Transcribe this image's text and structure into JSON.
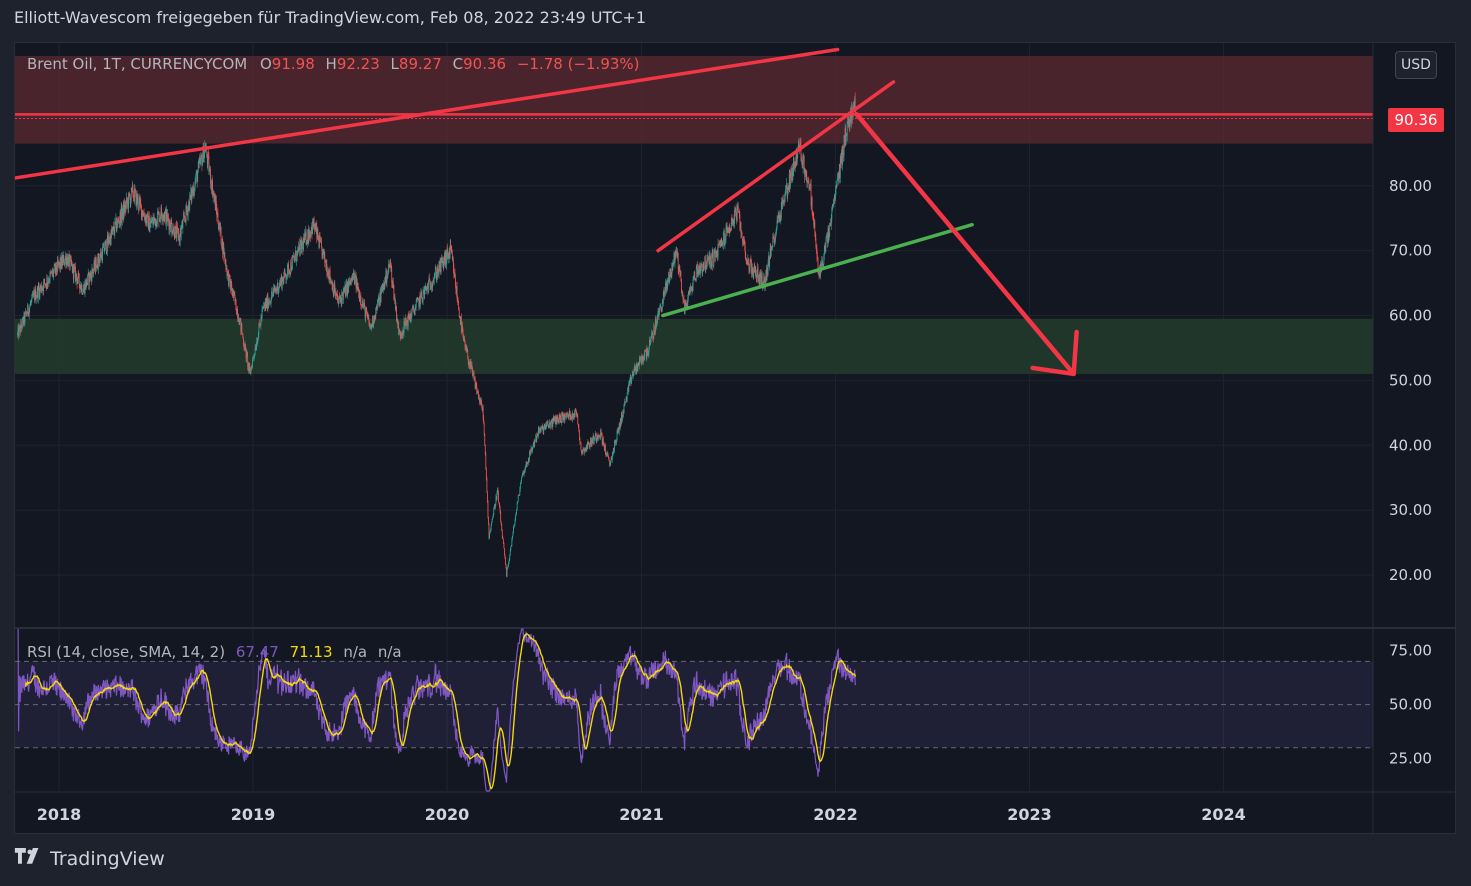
{
  "header": {
    "text": "Elliott-Wavescom freigegeben für TradingView.com, Feb 08, 2022 23:49 UTC+1"
  },
  "legend": {
    "symbol": "Brent Oil, 1T, CURRENCYCOM",
    "o_label": "O",
    "o_value": "91.98",
    "h_label": "H",
    "h_value": "92.23",
    "l_label": "L",
    "l_value": "89.27",
    "c_label": "C",
    "c_value": "90.36",
    "change": "−1.78 (−1.93%)"
  },
  "currency_button": "USD",
  "price_tag": "90.36",
  "rsi_legend": {
    "label": "RSI (14, close, SMA, 14, 2)",
    "rsi_value": "67.47",
    "sma_value": "71.13",
    "na1": "n/a",
    "na2": "n/a"
  },
  "footer": {
    "brand": "TradingView"
  },
  "colors": {
    "background": "#131722",
    "up": "#26a69a",
    "down": "#ef5350",
    "resistance_zone": "#5c2a32",
    "support_zone": "#223a2c",
    "trendline_red": "#f23645",
    "trendline_green": "#4caf50",
    "rsi_line": "#7e57c2",
    "rsi_sma": "#f5d90a"
  },
  "chart_data": [
    {
      "type": "candlestick",
      "title": "Brent Oil, 1T, CURRENCYCOM",
      "y_ticks": [
        "20.00",
        "30.00",
        "40.00",
        "50.00",
        "60.00",
        "70.00",
        "80.00"
      ],
      "x_ticks": [
        "2018",
        "2019",
        "2020",
        "2021",
        "2022",
        "2023",
        "2024"
      ],
      "ylim": [
        12,
        102
      ],
      "last_close": 90.36,
      "price_path": [
        [
          "2017-10-15",
          57
        ],
        [
          "2017-11-15",
          63
        ],
        [
          "2018-01-15",
          69
        ],
        [
          "2018-02-15",
          64
        ],
        [
          "2018-04-01",
          71
        ],
        [
          "2018-05-20",
          79
        ],
        [
          "2018-06-20",
          74
        ],
        [
          "2018-07-15",
          76
        ],
        [
          "2018-08-15",
          72
        ],
        [
          "2018-10-03",
          86
        ],
        [
          "2018-11-15",
          66
        ],
        [
          "2018-12-05",
          60
        ],
        [
          "2018-12-26",
          51
        ],
        [
          "2019-01-20",
          61
        ],
        [
          "2019-03-01",
          66
        ],
        [
          "2019-04-25",
          74
        ],
        [
          "2019-06-10",
          62
        ],
        [
          "2019-07-10",
          66
        ],
        [
          "2019-08-10",
          58
        ],
        [
          "2019-09-16",
          68
        ],
        [
          "2019-10-03",
          57
        ],
        [
          "2019-11-15",
          63
        ],
        [
          "2019-12-31",
          69
        ],
        [
          "2020-01-08",
          70
        ],
        [
          "2020-02-01",
          56
        ],
        [
          "2020-03-09",
          45
        ],
        [
          "2020-03-20",
          26
        ],
        [
          "2020-04-05",
          33
        ],
        [
          "2020-04-22",
          20
        ],
        [
          "2020-05-20",
          35
        ],
        [
          "2020-06-20",
          42
        ],
        [
          "2020-07-25",
          44
        ],
        [
          "2020-09-01",
          45
        ],
        [
          "2020-09-10",
          39
        ],
        [
          "2020-10-15",
          42
        ],
        [
          "2020-11-02",
          37
        ],
        [
          "2020-12-15",
          51
        ],
        [
          "2021-01-15",
          55
        ],
        [
          "2021-03-08",
          70
        ],
        [
          "2021-03-23",
          61
        ],
        [
          "2021-04-15",
          67
        ],
        [
          "2021-05-18",
          69
        ],
        [
          "2021-06-30",
          76
        ],
        [
          "2021-07-20",
          68
        ],
        [
          "2021-08-20",
          65
        ],
        [
          "2021-09-15",
          75
        ],
        [
          "2021-10-25",
          86
        ],
        [
          "2021-11-15",
          79
        ],
        [
          "2021-12-01",
          66
        ],
        [
          "2021-12-20",
          73
        ],
        [
          "2022-01-20",
          88
        ],
        [
          "2022-02-05",
          93
        ],
        [
          "2022-02-08",
          90.36
        ]
      ],
      "rsi": {
        "current": 67.47,
        "sma": 71.13,
        "y_ticks": [
          "25.00",
          "50.00",
          "75.00"
        ],
        "overbought": 70,
        "oversold": 30,
        "ylim": [
          10,
          85
        ]
      },
      "resistance_zone": {
        "from": 86.5,
        "to": 100
      },
      "support_zone": {
        "from": 51,
        "to": 59.5
      },
      "horizontal_level": 91,
      "trendlines": [
        {
          "color": "red",
          "from": [
            "2017-09-25",
            81
          ],
          "to": [
            "2022-01-05",
            101
          ]
        },
        {
          "color": "red",
          "from": [
            "2021-02-01",
            70
          ],
          "to": [
            "2022-04-20",
            96
          ]
        },
        {
          "color": "green",
          "from": [
            "2021-02-10",
            60
          ],
          "to": [
            "2022-09-15",
            74
          ]
        }
      ],
      "projection_arrow": {
        "from": [
          "2022-02-10",
          91
        ],
        "to": [
          "2023-03-25",
          51
        ]
      }
    }
  ]
}
